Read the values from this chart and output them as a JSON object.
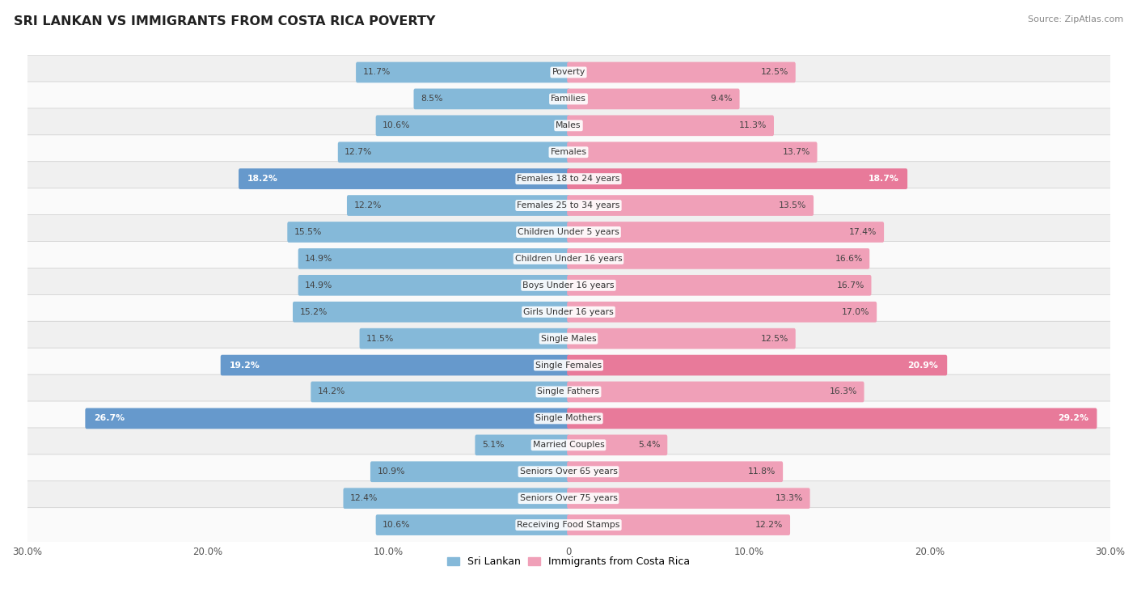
{
  "title": "SRI LANKAN VS IMMIGRANTS FROM COSTA RICA POVERTY",
  "source": "Source: ZipAtlas.com",
  "categories": [
    "Poverty",
    "Families",
    "Males",
    "Females",
    "Females 18 to 24 years",
    "Females 25 to 34 years",
    "Children Under 5 years",
    "Children Under 16 years",
    "Boys Under 16 years",
    "Girls Under 16 years",
    "Single Males",
    "Single Females",
    "Single Fathers",
    "Single Mothers",
    "Married Couples",
    "Seniors Over 65 years",
    "Seniors Over 75 years",
    "Receiving Food Stamps"
  ],
  "sri_lankan": [
    11.7,
    8.5,
    10.6,
    12.7,
    18.2,
    12.2,
    15.5,
    14.9,
    14.9,
    15.2,
    11.5,
    19.2,
    14.2,
    26.7,
    5.1,
    10.9,
    12.4,
    10.6
  ],
  "costa_rica": [
    12.5,
    9.4,
    11.3,
    13.7,
    18.7,
    13.5,
    17.4,
    16.6,
    16.7,
    17.0,
    12.5,
    20.9,
    16.3,
    29.2,
    5.4,
    11.8,
    13.3,
    12.2
  ],
  "color_blue": "#85b9d9",
  "color_pink": "#f0a0b8",
  "color_blue_highlight": "#6699cc",
  "color_pink_highlight": "#e87a9a",
  "bg_row_odd": "#f0f0f0",
  "bg_row_even": "#fafafa",
  "axis_max": 30.0,
  "legend_left": "Sri Lankan",
  "legend_right": "Immigrants from Costa Rica",
  "highlight_threshold": 18.0
}
